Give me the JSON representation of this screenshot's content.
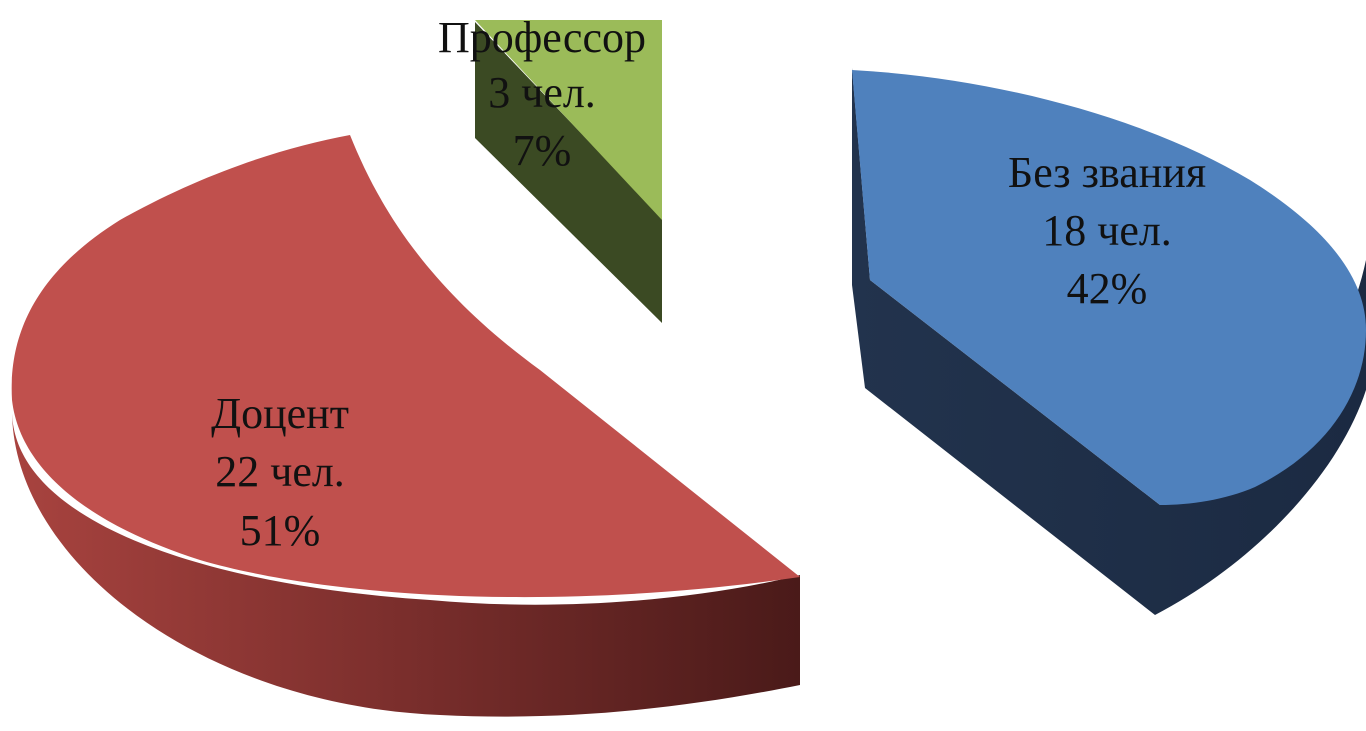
{
  "chart_data": {
    "type": "pie",
    "style": "3d-exploded",
    "title": "",
    "legend": "none",
    "slices": [
      {
        "name": "Без звания",
        "count": 18,
        "count_label": "18 чел.",
        "percent": 42,
        "percent_label": "42%",
        "color": "#4F81BD"
      },
      {
        "name": "Доцент",
        "count": 22,
        "count_label": "22 чел.",
        "percent": 51,
        "percent_label": "51%",
        "color": "#C0504D"
      },
      {
        "name": "Профессор",
        "count": 3,
        "count_label": "3 чел.",
        "percent": 7,
        "percent_label": "7%",
        "color": "#9BBB59"
      }
    ]
  }
}
